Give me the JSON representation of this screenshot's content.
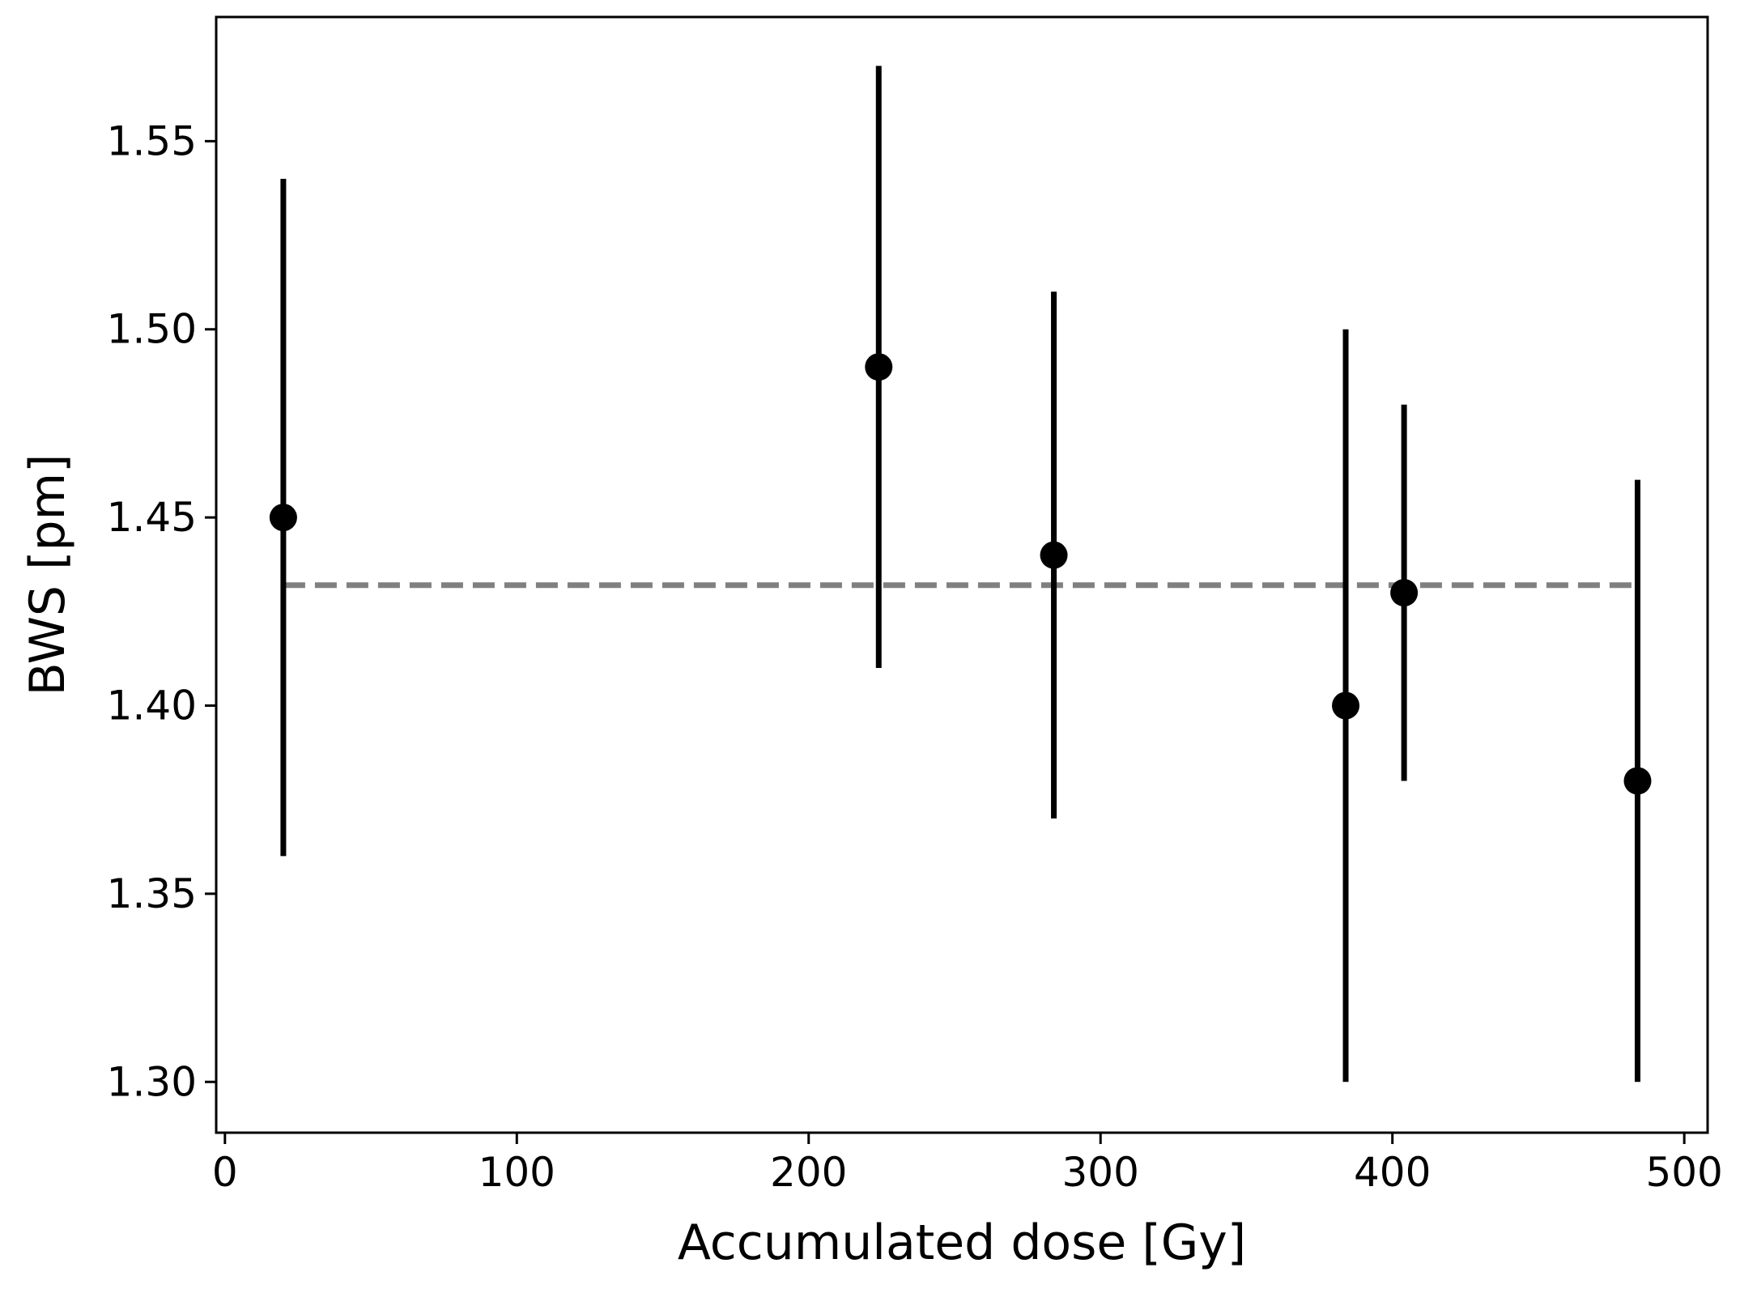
{
  "chart_data": {
    "type": "scatter",
    "title": "",
    "xlabel": "Accumulated dose [Gy]",
    "ylabel": "BWS [pm]",
    "xlim": [
      -3,
      508
    ],
    "ylim": [
      1.2865,
      1.583
    ],
    "xticks": [
      0,
      100,
      200,
      300,
      400,
      500
    ],
    "xtick_labels": [
      "0",
      "100",
      "200",
      "300",
      "400",
      "500"
    ],
    "yticks": [
      1.3,
      1.35,
      1.4,
      1.45,
      1.5,
      1.55
    ],
    "ytick_labels": [
      "1.30",
      "1.35",
      "1.40",
      "1.45",
      "1.50",
      "1.55"
    ],
    "grid": false,
    "legend": "none",
    "series": [
      {
        "marker_color": "#000000",
        "points": [
          {
            "x": 20,
            "y": 1.45,
            "ylow": 1.36,
            "yhigh": 1.54
          },
          {
            "x": 224,
            "y": 1.49,
            "ylow": 1.41,
            "yhigh": 1.57
          },
          {
            "x": 284,
            "y": 1.44,
            "ylow": 1.37,
            "yhigh": 1.51
          },
          {
            "x": 384,
            "y": 1.4,
            "ylow": 1.3,
            "yhigh": 1.5
          },
          {
            "x": 404,
            "y": 1.43,
            "ylow": 1.38,
            "yhigh": 1.48
          },
          {
            "x": 484,
            "y": 1.38,
            "ylow": 1.3,
            "yhigh": 1.46
          }
        ]
      }
    ],
    "reference_line": {
      "y": 1.432,
      "x_from": 20,
      "x_to": 484,
      "style": "dashed",
      "color": "#808080"
    }
  }
}
